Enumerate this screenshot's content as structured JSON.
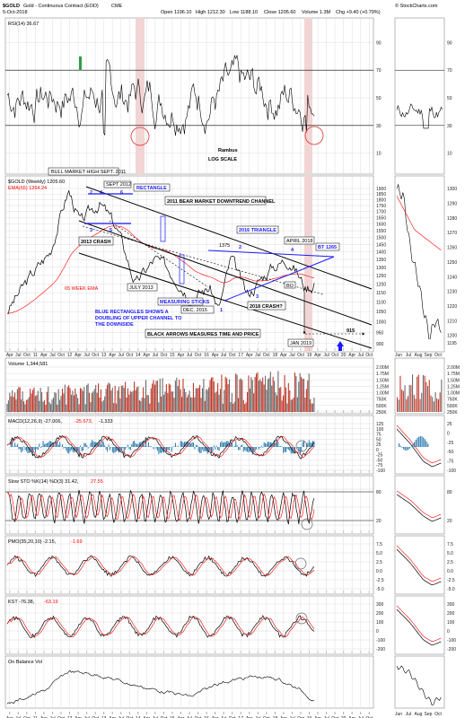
{
  "header": {
    "symbol": "$GOLD",
    "name": "Gold - Continuous Contract (EOD)",
    "exchange": "CME",
    "date": "5-Oct-2018",
    "open": "Open 1196.10",
    "high": "High 1212.30",
    "low": "Low 1188.10",
    "close": "Close 1205.60",
    "volume": "Volume 1.3M",
    "change": "Chg +9.40 (+0.79%)",
    "brand": "© StockCharts.com"
  },
  "chart_data": [
    {
      "type": "line",
      "panel": "rsi",
      "title": "RSI(14) 36.67",
      "y_ticks": [
        90,
        70,
        50,
        30,
        10
      ],
      "levels": [
        70,
        30
      ],
      "ylim": [
        0,
        100
      ],
      "side_ticks": [
        "90",
        "70",
        "50",
        "30",
        "10"
      ]
    },
    {
      "type": "line",
      "panel": "price",
      "title": "$GOLD (Weekly) 1205.60",
      "ema_label": "EMA(65) 1264.24",
      "scale": "log",
      "ylim": [
        880,
        1950
      ],
      "y_ticks": [
        1900,
        1850,
        1800,
        1750,
        1700,
        1650,
        1600,
        1550,
        1500,
        1450,
        1400,
        1350,
        1300,
        1250,
        1200,
        1150,
        1100,
        1050,
        1000,
        950,
        900
      ],
      "side_ticks": [
        1300,
        1290,
        1280,
        1270,
        1260,
        1250,
        1240,
        1230,
        1220,
        1210,
        1200,
        1195
      ],
      "x_labels": [
        "Apr",
        "Jul",
        "Oct",
        "11",
        "Apr",
        "Jul",
        "Oct",
        "12",
        "Apr",
        "Jul",
        "Oct",
        "13",
        "Apr",
        "Jul",
        "Oct",
        "14",
        "Apr",
        "Jul",
        "Oct",
        "15",
        "Apr",
        "Jul",
        "Oct",
        "16",
        "Apr",
        "Jul",
        "Oct",
        "17",
        "Apr",
        "Jul",
        "Oct",
        "18",
        "Apr",
        "Jul",
        "Oct",
        "19",
        "Apr",
        "Jul",
        "Oct",
        "20",
        "Apr",
        "Jul",
        "Oct"
      ],
      "side_x_labels": [
        "Jun",
        "Jul",
        "Aug",
        "Sep",
        "Oct"
      ],
      "annotations": {
        "bull_high": "BULL MARKET HIGH SEPT. 2011",
        "sept2012": "SEPT 2012",
        "rectangle": "RECTANGLE",
        "bear_channel": "2011 BEAR MARKET DOWNTREND  CHANNEL",
        "triangle_2016": "2016 TRIANGLE",
        "april_2018": "APRIL 2018",
        "bt_1265": "BT 1265",
        "crash_2013": "2013 CRASH",
        "ema_65": "65 WEEK EMA",
        "july_2013": "JULY 2013",
        "measuring_sticks": "MEASURING STICKS",
        "dec_2015": "DEC. 2015",
        "crash_2018": "2018 CRASH?",
        "blue_rect_1": "BLUE RECTANGLES SHOWS A",
        "blue_rect_2": "DOUBLING OF UPPER CHANNEL TO",
        "blue_rect_3": "THE DOWNSIDE",
        "black_arrows": "BLACK ARROWS MEASURES TIME AND PRICE",
        "jan_2019": "JAN 2019",
        "target_915": "915",
        "level_1375": "1375",
        "bo": "BO",
        "rambus": "Rambus",
        "log_scale": "LOG SCALE",
        "n2a": "2",
        "n3a": "3",
        "n4a": "4",
        "n5a": "5",
        "n6a": "6",
        "n1b": "1",
        "n2b": "2",
        "n3b": "3",
        "n4b": "4"
      }
    },
    {
      "type": "bar",
      "panel": "volume",
      "title": "Volume 1,344,581",
      "y_ticks": [
        "2.00M",
        "1.75M",
        "1.50M",
        "1.25M",
        "1.00M",
        "750K",
        "500K",
        "250K"
      ],
      "side_ticks": [
        "2.00M",
        "1.75M",
        "1.50M",
        "1.25M",
        "1.00M",
        "750K",
        "500K",
        "250K"
      ]
    },
    {
      "type": "line",
      "panel": "macd",
      "title": "MACD(12,26,9) -27.006, -25.673, -1.333",
      "title_main": "MACD(12,26,9) -27.006,",
      "title_signal": "-25.673,",
      "title_hist": "-1.333",
      "y_ticks": [
        "125",
        "100",
        "75",
        "50",
        "25",
        "0",
        "-25",
        "-50",
        "-75",
        "-100"
      ],
      "side_ticks": [
        "25",
        "0",
        "-25",
        "-50",
        "-75",
        "-100"
      ]
    },
    {
      "type": "line",
      "panel": "stochastic",
      "title": "Slow STO %K(14) %D(3) 31.42, 27.55",
      "title_main": "Slow STO %K(14) %D(3) 31.42,",
      "title_d": "27.55",
      "levels": [
        80,
        20
      ],
      "y_ticks": [
        "80",
        "20"
      ],
      "side_ticks": [
        "80",
        "20"
      ]
    },
    {
      "type": "line",
      "panel": "pmo",
      "title": "PMO(35,20,10) -2.15, -1.69",
      "title_main": "PMO(35,20,10) -2.15,",
      "title_signal": "-1.69",
      "y_ticks": [
        "7.5",
        "5.0",
        "2.5",
        "0.0",
        "-2.5",
        "-5.0"
      ],
      "side_ticks": [
        "7.5",
        "5.0",
        "2.5",
        "0.0",
        "-2.5",
        "-5.0"
      ]
    },
    {
      "type": "line",
      "panel": "kst",
      "title": "KST -76.38, -63.19",
      "title_main": "KST -76.38,",
      "title_signal": "-63.19",
      "y_ticks": [
        "300",
        "200",
        "100",
        "0",
        "-100",
        "-200"
      ],
      "side_ticks": [
        "300",
        "200",
        "100",
        "0",
        "-100",
        "-200"
      ]
    },
    {
      "type": "line",
      "panel": "obv",
      "title": "On Balance Vol"
    }
  ],
  "colors": {
    "price": "#000000",
    "ema": "#ff0000",
    "annotation": "#1a1aff",
    "volume_up": "#c0392b",
    "volume_down": "#6b6b6b",
    "hist": "#2a7ab0",
    "shade": "#f3d4d4"
  }
}
